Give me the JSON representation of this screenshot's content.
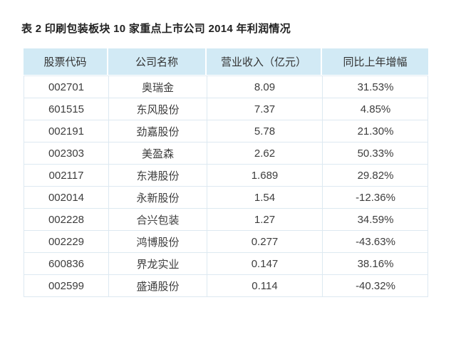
{
  "title": "表 2 印刷包装板块 10 家重点上市公司 2014 年利润情况",
  "table": {
    "columns": [
      {
        "label": "股票代码"
      },
      {
        "label": "公司名称"
      },
      {
        "label": "营业收入（亿元）"
      },
      {
        "label": "同比上年增幅"
      }
    ],
    "rows": [
      {
        "code": "002701",
        "name": "奥瑞金",
        "revenue": "8.09",
        "growth": "31.53%"
      },
      {
        "code": "601515",
        "name": "东风股份",
        "revenue": "7.37",
        "growth": "4.85%"
      },
      {
        "code": "002191",
        "name": "劲嘉股份",
        "revenue": "5.78",
        "growth": "21.30%"
      },
      {
        "code": "002303",
        "name": "美盈森",
        "revenue": "2.62",
        "growth": "50.33%"
      },
      {
        "code": "002117",
        "name": "东港股份",
        "revenue": "1.689",
        "growth": "29.82%"
      },
      {
        "code": "002014",
        "name": "永新股份",
        "revenue": "1.54",
        "growth": "-12.36%"
      },
      {
        "code": "002228",
        "name": "合兴包装",
        "revenue": "1.27",
        "growth": "34.59%"
      },
      {
        "code": "002229",
        "name": "鸿博股份",
        "revenue": "0.277",
        "growth": "-43.63%"
      },
      {
        "code": "600836",
        "name": "界龙实业",
        "revenue": "0.147",
        "growth": "38.16%"
      },
      {
        "code": "002599",
        "name": "盛通股份",
        "revenue": "0.114",
        "growth": "-40.32%"
      }
    ]
  },
  "colors": {
    "header_bg": "#d2eaf5",
    "grid_border": "#dde9f1",
    "title_text": "#222222",
    "header_text": "#333333",
    "cell_text": "#3d3d3d",
    "page_bg": "#ffffff"
  }
}
